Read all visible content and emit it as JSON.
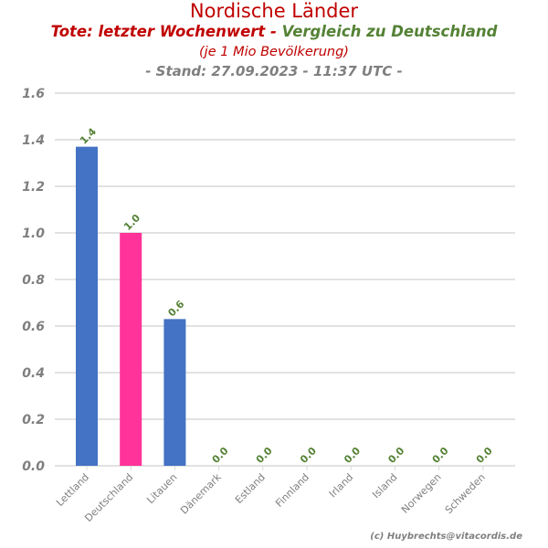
{
  "chart_data": {
    "type": "bar",
    "title": "Nordische Länder",
    "subtitle_part1": "Tote: letzter Wochenwert - ",
    "subtitle_part2": "Vergleich zu Deutschland",
    "note": "(je 1 Mio Bevölkerung)",
    "stand": "- Stand: 27.09.2023 - 11:37 UTC -",
    "credit": "(c) Huybrechts@vitacordis.de",
    "categories": [
      "Lettland",
      "Deutschland",
      "Litauen",
      "Dänemark",
      "Estland",
      "Finnland",
      "Irland",
      "Island",
      "Norwegen",
      "Schweden"
    ],
    "values": [
      1.37,
      1.0,
      0.63,
      0.0,
      0.0,
      0.0,
      0.0,
      0.0,
      0.0,
      0.0
    ],
    "data_labels": [
      "1.4",
      "1.0",
      "0.6",
      "0.0",
      "0.0",
      "0.0",
      "0.0",
      "0.0",
      "0.0",
      "0.0"
    ],
    "yticks": [
      "0.0",
      "0.2",
      "0.4",
      "0.6",
      "0.8",
      "1.0",
      "1.2",
      "1.4",
      "1.6"
    ],
    "ylim": [
      0,
      1.6
    ],
    "grid": true,
    "colors": {
      "default_bar": "#4472c4",
      "highlight_bar": "#ff3399",
      "title": "#c00000",
      "subtitle_part1": "#c00000",
      "subtitle_part2": "#548235",
      "data_label": "#548235",
      "axis_text": "#7f7f7f",
      "grid": "#d9d9d9"
    },
    "highlight_category": "Deutschland"
  }
}
